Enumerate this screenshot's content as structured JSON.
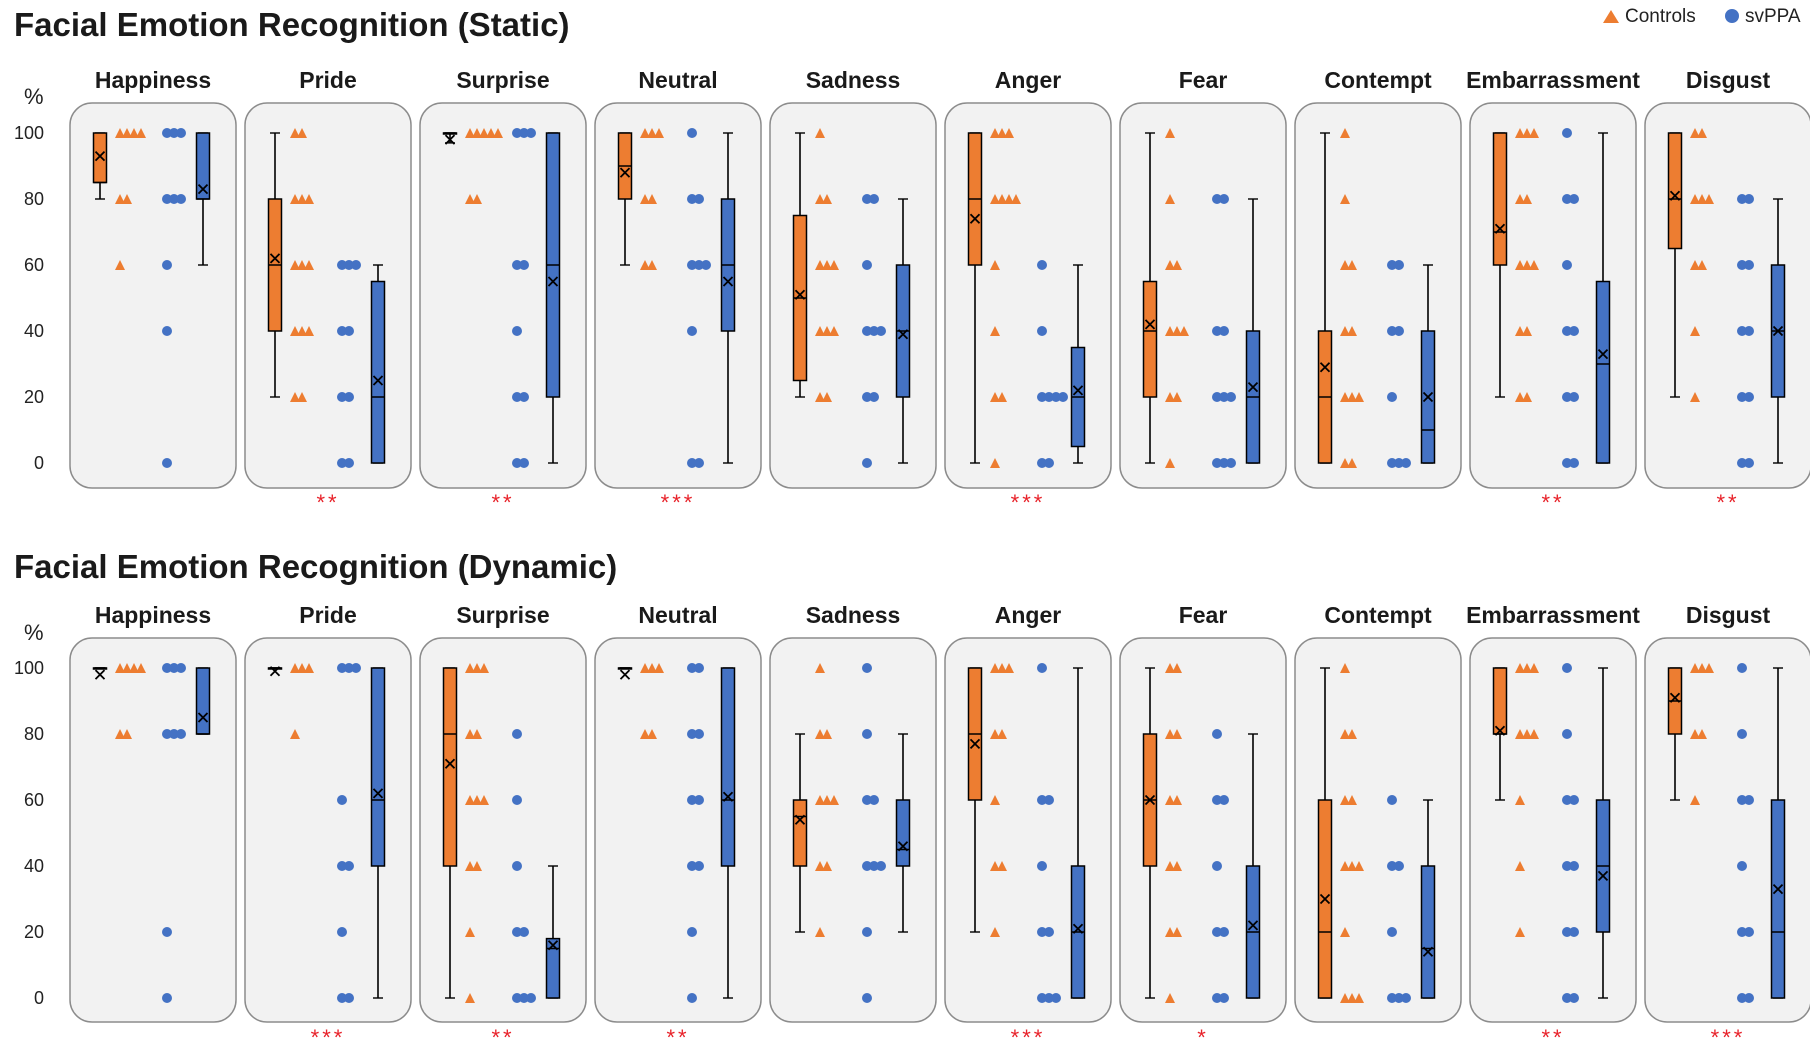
{
  "legend": {
    "controls_label": "Controls",
    "svppa_label": "svPPA",
    "controls_color": "#ED7D31",
    "svppa_color": "#4472C4",
    "controls_marker": "triangle",
    "svppa_marker": "circle"
  },
  "chart_data": [
    {
      "type": "box",
      "title": "Facial Emotion Recognition (Static)",
      "ylabel": "%",
      "ylim": [
        0,
        100
      ],
      "yticks": [
        0,
        20,
        40,
        60,
        80,
        100
      ],
      "groups": [
        "Controls",
        "svPPA"
      ],
      "panels": [
        {
          "emotion": "Happiness",
          "sig": "",
          "controls": {
            "min": 80,
            "q1": 85,
            "median": 85,
            "q3": 100,
            "max": 100,
            "mean": 93,
            "points": [
              100,
              100,
              100,
              100,
              80,
              80,
              60
            ]
          },
          "svppa": {
            "min": 60,
            "q1": 80,
            "median": 80,
            "q3": 100,
            "max": 100,
            "mean": 83,
            "points": [
              100,
              100,
              100,
              80,
              80,
              80,
              60,
              40,
              0
            ]
          }
        },
        {
          "emotion": "Pride",
          "sig": "**",
          "controls": {
            "min": 20,
            "q1": 40,
            "median": 60,
            "q3": 80,
            "max": 100,
            "mean": 62,
            "points": [
              100,
              100,
              80,
              80,
              80,
              60,
              60,
              60,
              40,
              40,
              40,
              20,
              20
            ]
          },
          "svppa": {
            "min": 0,
            "q1": 0,
            "median": 20,
            "q3": 55,
            "max": 60,
            "mean": 25,
            "points": [
              60,
              60,
              60,
              40,
              40,
              20,
              20,
              0,
              0
            ]
          }
        },
        {
          "emotion": "Surprise",
          "sig": "**",
          "controls": {
            "min": 97,
            "q1": 100,
            "median": 100,
            "q3": 100,
            "max": 100,
            "mean": 98,
            "points": [
              100,
              100,
              100,
              100,
              100,
              80,
              80
            ]
          },
          "svppa": {
            "min": 0,
            "q1": 20,
            "median": 60,
            "q3": 100,
            "max": 100,
            "mean": 55,
            "points": [
              100,
              100,
              100,
              60,
              60,
              40,
              20,
              20,
              0,
              0
            ]
          }
        },
        {
          "emotion": "Neutral",
          "sig": "***",
          "controls": {
            "min": 60,
            "q1": 80,
            "median": 90,
            "q3": 100,
            "max": 100,
            "mean": 88,
            "points": [
              100,
              100,
              100,
              80,
              80,
              60,
              60
            ]
          },
          "svppa": {
            "min": 0,
            "q1": 40,
            "median": 60,
            "q3": 80,
            "max": 100,
            "mean": 55,
            "points": [
              100,
              80,
              80,
              60,
              60,
              60,
              40,
              0,
              0
            ]
          }
        },
        {
          "emotion": "Sadness",
          "sig": "",
          "controls": {
            "min": 20,
            "q1": 25,
            "median": 50,
            "q3": 75,
            "max": 100,
            "mean": 51,
            "points": [
              100,
              80,
              80,
              60,
              60,
              60,
              40,
              40,
              40,
              20,
              20
            ]
          },
          "svppa": {
            "min": 0,
            "q1": 20,
            "median": 40,
            "q3": 60,
            "max": 80,
            "mean": 39,
            "points": [
              80,
              80,
              60,
              40,
              40,
              40,
              20,
              20,
              0
            ]
          }
        },
        {
          "emotion": "Anger",
          "sig": "***",
          "controls": {
            "min": 0,
            "q1": 60,
            "median": 80,
            "q3": 100,
            "max": 100,
            "mean": 74,
            "points": [
              100,
              100,
              100,
              80,
              80,
              80,
              80,
              60,
              40,
              20,
              20,
              0
            ]
          },
          "svppa": {
            "min": 0,
            "q1": 5,
            "median": 20,
            "q3": 35,
            "max": 60,
            "mean": 22,
            "points": [
              60,
              40,
              20,
              20,
              20,
              20,
              0,
              0
            ]
          }
        },
        {
          "emotion": "Fear",
          "sig": "",
          "controls": {
            "min": 0,
            "q1": 20,
            "median": 40,
            "q3": 55,
            "max": 100,
            "mean": 42,
            "points": [
              100,
              80,
              60,
              60,
              40,
              40,
              40,
              20,
              20,
              0
            ]
          },
          "svppa": {
            "min": 0,
            "q1": 0,
            "median": 20,
            "q3": 40,
            "max": 80,
            "mean": 23,
            "points": [
              80,
              80,
              40,
              40,
              20,
              20,
              20,
              0,
              0,
              0
            ]
          }
        },
        {
          "emotion": "Contempt",
          "sig": "",
          "controls": {
            "min": 0,
            "q1": 0,
            "median": 20,
            "q3": 40,
            "max": 100,
            "mean": 29,
            "points": [
              100,
              80,
              60,
              60,
              40,
              40,
              20,
              20,
              20,
              0,
              0
            ]
          },
          "svppa": {
            "min": 0,
            "q1": 0,
            "median": 10,
            "q3": 40,
            "max": 60,
            "mean": 20,
            "points": [
              60,
              60,
              40,
              40,
              20,
              0,
              0,
              0
            ]
          }
        },
        {
          "emotion": "Embarrassment",
          "sig": "**",
          "controls": {
            "min": 20,
            "q1": 60,
            "median": 70,
            "q3": 100,
            "max": 100,
            "mean": 71,
            "points": [
              100,
              100,
              100,
              80,
              80,
              60,
              60,
              60,
              40,
              40,
              20,
              20
            ]
          },
          "svppa": {
            "min": 0,
            "q1": 0,
            "median": 30,
            "q3": 55,
            "max": 100,
            "mean": 33,
            "points": [
              100,
              80,
              80,
              60,
              40,
              40,
              20,
              20,
              0,
              0
            ]
          }
        },
        {
          "emotion": "Disgust",
          "sig": "**",
          "controls": {
            "min": 20,
            "q1": 65,
            "median": 80,
            "q3": 100,
            "max": 100,
            "mean": 81,
            "points": [
              100,
              100,
              80,
              80,
              80,
              60,
              60,
              40,
              20
            ]
          },
          "svppa": {
            "min": 0,
            "q1": 20,
            "median": 40,
            "q3": 60,
            "max": 80,
            "mean": 40,
            "points": [
              80,
              80,
              60,
              60,
              40,
              40,
              20,
              20,
              0,
              0
            ]
          }
        }
      ]
    },
    {
      "type": "box",
      "title": "Facial Emotion Recognition (Dynamic)",
      "ylabel": "%",
      "ylim": [
        0,
        100
      ],
      "yticks": [
        0,
        20,
        40,
        60,
        80,
        100
      ],
      "groups": [
        "Controls",
        "svPPA"
      ],
      "panels": [
        {
          "emotion": "Happiness",
          "sig": "",
          "controls": {
            "min": 100,
            "q1": 100,
            "median": 100,
            "q3": 100,
            "max": 100,
            "mean": 98,
            "points": [
              100,
              100,
              100,
              100,
              80,
              80
            ]
          },
          "svppa": {
            "min": 80,
            "q1": 80,
            "median": 80,
            "q3": 100,
            "max": 100,
            "mean": 85,
            "points": [
              100,
              100,
              100,
              80,
              80,
              80,
              20,
              0
            ]
          }
        },
        {
          "emotion": "Pride",
          "sig": "***",
          "controls": {
            "min": 100,
            "q1": 100,
            "median": 100,
            "q3": 100,
            "max": 100,
            "mean": 99,
            "points": [
              100,
              100,
              100,
              80
            ]
          },
          "svppa": {
            "min": 0,
            "q1": 40,
            "median": 60,
            "q3": 100,
            "max": 100,
            "mean": 62,
            "points": [
              100,
              100,
              100,
              60,
              40,
              40,
              20,
              0,
              0
            ]
          }
        },
        {
          "emotion": "Surprise",
          "sig": "**",
          "controls": {
            "min": 0,
            "q1": 40,
            "median": 80,
            "q3": 100,
            "max": 100,
            "mean": 71,
            "points": [
              100,
              100,
              100,
              80,
              80,
              60,
              60,
              60,
              40,
              40,
              20,
              0
            ]
          },
          "svppa": {
            "min": 0,
            "q1": 0,
            "median": 15,
            "q3": 18,
            "max": 40,
            "mean": 16,
            "points": [
              80,
              60,
              40,
              20,
              20,
              0,
              0,
              0
            ]
          }
        },
        {
          "emotion": "Neutral",
          "sig": "**",
          "controls": {
            "min": 100,
            "q1": 100,
            "median": 100,
            "q3": 100,
            "max": 100,
            "mean": 98,
            "points": [
              100,
              100,
              100,
              80,
              80
            ]
          },
          "svppa": {
            "min": 0,
            "q1": 40,
            "median": 60,
            "q3": 100,
            "max": 100,
            "mean": 61,
            "points": [
              100,
              100,
              80,
              80,
              60,
              60,
              40,
              40,
              20,
              0
            ]
          }
        },
        {
          "emotion": "Sadness",
          "sig": "",
          "controls": {
            "min": 20,
            "q1": 40,
            "median": 55,
            "q3": 60,
            "max": 80,
            "mean": 54,
            "points": [
              100,
              80,
              80,
              60,
              60,
              60,
              40,
              40,
              20
            ]
          },
          "svppa": {
            "min": 20,
            "q1": 40,
            "median": 45,
            "q3": 60,
            "max": 80,
            "mean": 46,
            "points": [
              100,
              80,
              60,
              60,
              40,
              40,
              40,
              20,
              0
            ]
          }
        },
        {
          "emotion": "Anger",
          "sig": "***",
          "controls": {
            "min": 20,
            "q1": 60,
            "median": 80,
            "q3": 100,
            "max": 100,
            "mean": 77,
            "points": [
              100,
              100,
              100,
              80,
              80,
              60,
              40,
              40,
              20
            ]
          },
          "svppa": {
            "min": 0,
            "q1": 0,
            "median": 20,
            "q3": 40,
            "max": 100,
            "mean": 21,
            "points": [
              100,
              60,
              60,
              40,
              20,
              20,
              0,
              0,
              0
            ]
          }
        },
        {
          "emotion": "Fear",
          "sig": "*",
          "controls": {
            "min": 0,
            "q1": 40,
            "median": 60,
            "q3": 80,
            "max": 100,
            "mean": 60,
            "points": [
              100,
              100,
              80,
              80,
              60,
              60,
              40,
              40,
              20,
              20,
              0
            ]
          },
          "svppa": {
            "min": 0,
            "q1": 0,
            "median": 20,
            "q3": 40,
            "max": 80,
            "mean": 22,
            "points": [
              80,
              60,
              60,
              40,
              20,
              20,
              0,
              0
            ]
          }
        },
        {
          "emotion": "Contempt",
          "sig": "",
          "controls": {
            "min": 0,
            "q1": 0,
            "median": 20,
            "q3": 60,
            "max": 100,
            "mean": 30,
            "points": [
              100,
              80,
              80,
              60,
              60,
              40,
              40,
              40,
              20,
              0,
              0,
              0
            ]
          },
          "svppa": {
            "min": 0,
            "q1": 0,
            "median": 15,
            "q3": 40,
            "max": 60,
            "mean": 14,
            "points": [
              60,
              40,
              40,
              20,
              0,
              0,
              0
            ]
          }
        },
        {
          "emotion": "Embarrassment",
          "sig": "**",
          "controls": {
            "min": 60,
            "q1": 80,
            "median": 80,
            "q3": 100,
            "max": 100,
            "mean": 81,
            "points": [
              100,
              100,
              100,
              80,
              80,
              80,
              60,
              40,
              20
            ]
          },
          "svppa": {
            "min": 0,
            "q1": 20,
            "median": 40,
            "q3": 60,
            "max": 100,
            "mean": 37,
            "points": [
              100,
              80,
              60,
              60,
              40,
              40,
              20,
              20,
              0,
              0
            ]
          }
        },
        {
          "emotion": "Disgust",
          "sig": "***",
          "controls": {
            "min": 60,
            "q1": 80,
            "median": 90,
            "q3": 100,
            "max": 100,
            "mean": 91,
            "points": [
              100,
              100,
              100,
              80,
              80,
              60
            ]
          },
          "svppa": {
            "min": 0,
            "q1": 0,
            "median": 20,
            "q3": 60,
            "max": 100,
            "mean": 33,
            "points": [
              100,
              80,
              60,
              60,
              40,
              20,
              20,
              0,
              0
            ]
          }
        }
      ]
    }
  ]
}
